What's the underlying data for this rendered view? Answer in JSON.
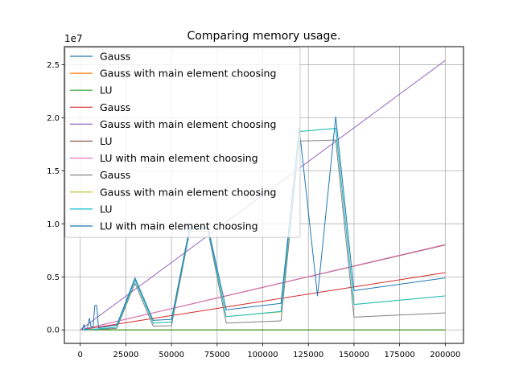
{
  "chart_data": {
    "type": "line",
    "title": "Comparing memory usage.",
    "xlabel": "",
    "ylabel": "",
    "y_offset_label": "1e7",
    "xlim": [
      -8700,
      210000
    ],
    "ylim": [
      -1270000,
      26700000
    ],
    "x_ticks": [
      0,
      25000,
      50000,
      75000,
      100000,
      125000,
      150000,
      175000,
      200000
    ],
    "x_tick_labels": [
      "0",
      "25000",
      "50000",
      "75000",
      "100000",
      "125000",
      "150000",
      "175000",
      "200000"
    ],
    "y_ticks": [
      0,
      5000000,
      10000000,
      15000000,
      20000000,
      25000000
    ],
    "y_tick_labels": [
      "0.0",
      "0.5",
      "1.0",
      "1.5",
      "2.0",
      "2.5"
    ],
    "grid": true,
    "legend_position": "upper-left",
    "series": [
      {
        "name": "Gauss",
        "color": "#1f77b4",
        "x": [
          1000,
          200000
        ],
        "y": [
          0,
          0
        ]
      },
      {
        "name": "Gauss with main element choosing",
        "color": "#ff7f0e",
        "x": [
          1000,
          200000
        ],
        "y": [
          0,
          0
        ]
      },
      {
        "name": "LU",
        "color": "#2ca02c",
        "x": [
          1000,
          200000
        ],
        "y": [
          0,
          0
        ]
      },
      {
        "name": "Gauss",
        "color": "#d62728",
        "x": [
          0,
          200000
        ],
        "y": [
          0,
          5400000
        ]
      },
      {
        "name": "Gauss with main element choosing",
        "color": "#9467bd",
        "x": [
          0,
          200000
        ],
        "y": [
          0,
          25400000
        ]
      },
      {
        "name": "LU",
        "color": "#8c564b",
        "x": [
          0,
          200000
        ],
        "y": [
          0,
          8000000
        ]
      },
      {
        "name": "LU with main element choosing",
        "color": "#e377c2",
        "x": [
          0,
          200000
        ],
        "y": [
          0,
          8050000
        ]
      },
      {
        "name": "Gauss",
        "color": "#7f7f7f",
        "x": [
          1000,
          10000,
          20000,
          30000,
          40000,
          50000,
          60000,
          70000,
          80000,
          110000,
          120000,
          140000,
          150000,
          200000
        ],
        "y": [
          0,
          50000,
          150000,
          4400000,
          350000,
          400000,
          9300000,
          9300000,
          650000,
          850000,
          17800000,
          17900000,
          1200000,
          1600000
        ]
      },
      {
        "name": "Gauss with main element choosing",
        "color": "#bcbd22",
        "x": [
          1000,
          10000,
          20000,
          30000,
          40000,
          50000,
          60000,
          70000,
          80000,
          110000,
          120000,
          140000,
          150000,
          200000
        ],
        "y": [
          0,
          100000,
          250000,
          4700000,
          650000,
          750000,
          9500000,
          9500000,
          1250000,
          1700000,
          18700000,
          19000000,
          2400000,
          3200000
        ]
      },
      {
        "name": "LU",
        "color": "#17becf",
        "x": [
          1000,
          10000,
          20000,
          30000,
          40000,
          50000,
          60000,
          70000,
          80000,
          110000,
          120000,
          140000,
          150000,
          200000
        ],
        "y": [
          0,
          100000,
          250000,
          4700000,
          650000,
          750000,
          9500000,
          9500000,
          1250000,
          1750000,
          18700000,
          19000000,
          2400000,
          3200000
        ]
      },
      {
        "name": "LU with main element choosing",
        "color": "#1f77b4",
        "x": [
          1000,
          2000,
          3000,
          4000,
          5000,
          6000,
          7000,
          8000,
          9000,
          10000,
          20000,
          30000,
          40000,
          50000,
          60000,
          70000,
          80000,
          110000,
          120000,
          130000,
          140000,
          150000,
          200000
        ],
        "y": [
          0,
          500000,
          0,
          200000,
          1100000,
          200000,
          300000,
          2300000,
          2300000,
          200000,
          450000,
          4900000,
          900000,
          1000000,
          9700000,
          9700000,
          1900000,
          2500000,
          19000000,
          3200000,
          20100000,
          3700000,
          4900000
        ]
      }
    ]
  }
}
